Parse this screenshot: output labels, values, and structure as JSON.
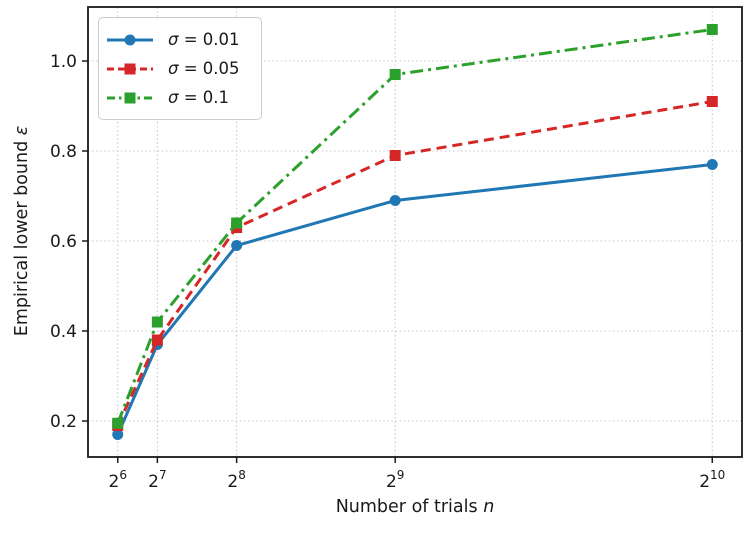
{
  "chart_data": {
    "type": "line",
    "xlabel_text": "Number of trials ",
    "xlabel_var": "n",
    "ylabel_text": "Empirical lower bound ",
    "ylabel_var": "ε",
    "x": [
      64,
      128,
      256,
      512,
      1024
    ],
    "xtick_base": "2",
    "xtick_exponents": [
      "6",
      "7",
      "8",
      "9",
      "10"
    ],
    "yticks": [
      0.2,
      0.4,
      0.6,
      0.8,
      1.0
    ],
    "ytick_labels": [
      "0.2",
      "0.4",
      "0.6",
      "0.8",
      "1.0"
    ],
    "xlim": [
      16,
      1072
    ],
    "ylim": [
      0.12,
      1.12
    ],
    "grid": "dotted",
    "legend_position": "upper-left",
    "series": [
      {
        "name": "σ = 0.01",
        "sigma": "σ",
        "rest": " = 0.01",
        "color": "#1f77b4",
        "linestyle": "solid",
        "marker": "circle",
        "values": [
          0.17,
          0.37,
          0.59,
          0.69,
          0.77
        ]
      },
      {
        "name": "σ = 0.05",
        "sigma": "σ",
        "rest": " = 0.05",
        "color": "#d62728",
        "linestyle": "dashed",
        "marker": "square",
        "values": [
          0.19,
          0.38,
          0.63,
          0.79,
          0.91
        ]
      },
      {
        "name": "σ = 0.1",
        "sigma": "σ",
        "rest": " = 0.1",
        "color": "#2ca02c",
        "linestyle": "dashdot",
        "marker": "square",
        "values": [
          0.195,
          0.42,
          0.64,
          0.97,
          1.07
        ]
      }
    ],
    "colors": {
      "background": "#ffffff",
      "frame": "#1a1a1a",
      "grid": "#c9c9c9",
      "tick": "#1a1a1a",
      "text": "#1a1a1a",
      "legend_border": "#cccccc"
    }
  }
}
